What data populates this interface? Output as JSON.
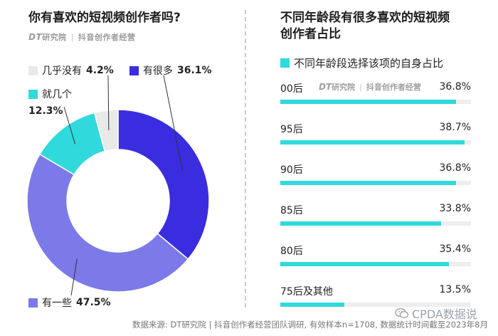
{
  "left": {
    "title": "你有喜欢的短视频创作者吗?",
    "brand_dt": "DT",
    "brand_dt_cn": "研究院",
    "brand_sep": "|",
    "brand_partner": "抖音创作者经营"
  },
  "right": {
    "title_line1": "不同年龄段有很多喜欢的短视频",
    "title_line2": "创作者占比",
    "legend_label": "不同年龄段选择该项的自身占比",
    "brand_dt": "DT",
    "brand_dt_cn": "研究院",
    "brand_sep": "|",
    "brand_partner": "抖音创作者经营"
  },
  "colors": {
    "very_many": "#3a2de0",
    "some": "#7b7ae8",
    "few": "#30d9dc",
    "almost_none": "#e9e9e9",
    "bar": "#30d9dc",
    "track": "#eeeeee"
  },
  "chart_data": [
    {
      "type": "pie",
      "subtype": "donut",
      "categories": [
        "有很多",
        "有一些",
        "就几个",
        "几乎没有"
      ],
      "values": [
        36.1,
        47.5,
        12.3,
        4.2
      ],
      "value_labels": [
        "36.1%",
        "47.5%",
        "12.3%",
        "4.2%"
      ],
      "colors": [
        "#3a2de0",
        "#7b7ae8",
        "#30d9dc",
        "#e9e9e9"
      ]
    },
    {
      "type": "bar",
      "orientation": "horizontal",
      "categories": [
        "00后",
        "95后",
        "90后",
        "85后",
        "80后",
        "75后及其他"
      ],
      "values": [
        36.8,
        38.7,
        36.8,
        33.8,
        35.4,
        13.5
      ],
      "value_labels": [
        "36.8%",
        "38.7%",
        "36.8%",
        "33.8%",
        "35.4%",
        "13.5%"
      ],
      "xlim": [
        0,
        40
      ],
      "series": [
        {
          "name": "不同年龄段选择该项的自身占比",
          "values": [
            36.8,
            38.7,
            36.8,
            33.8,
            35.4,
            13.5
          ]
        }
      ]
    }
  ],
  "footer": "数据来源: DT研究院 | 抖音创作者经营团队调研, 有效样本n=1708, 数据统计时间截至2023年8月",
  "watermark": "CPDA数据说"
}
